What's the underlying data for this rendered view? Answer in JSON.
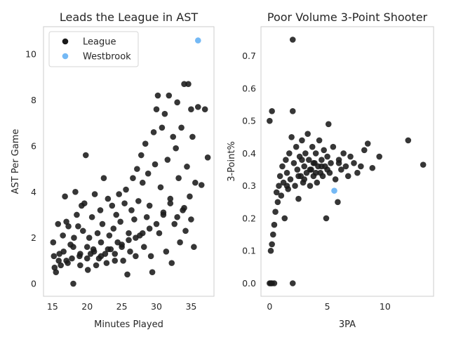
{
  "chart_data": [
    {
      "type": "scatter",
      "title": "Leads the League in AST",
      "xlabel": "Minutes Played",
      "ylabel": "AST Per Game",
      "xlim": [
        13.7,
        38.3
      ],
      "ylim": [
        -0.55,
        11.2
      ],
      "xticks": [
        15,
        20,
        25,
        30,
        35
      ],
      "yticks": [
        0,
        2,
        4,
        6,
        8,
        10
      ],
      "grid": false,
      "legend_position": "top-left",
      "series": [
        {
          "name": "League",
          "color": "#1a1a1a",
          "points": [
            [
              15.1,
              1.8
            ],
            [
              15.2,
              1.2
            ],
            [
              15.3,
              0.7
            ],
            [
              15.5,
              0.5
            ],
            [
              15.8,
              2.6
            ],
            [
              15.9,
              1.0
            ],
            [
              16.2,
              0.8
            ],
            [
              16.5,
              2.1
            ],
            [
              16.6,
              1.4
            ],
            [
              16.8,
              3.8
            ],
            [
              17.0,
              2.7
            ],
            [
              17.2,
              0.9
            ],
            [
              17.3,
              2.5
            ],
            [
              17.6,
              1.7
            ],
            [
              17.8,
              1.1
            ],
            [
              18.0,
              0.0
            ],
            [
              18.1,
              2.0
            ],
            [
              18.3,
              4.0
            ],
            [
              18.5,
              3.0
            ],
            [
              18.7,
              2.5
            ],
            [
              18.9,
              1.2
            ],
            [
              19.0,
              0.8
            ],
            [
              19.2,
              3.4
            ],
            [
              19.4,
              2.3
            ],
            [
              19.6,
              3.5
            ],
            [
              19.8,
              5.6
            ],
            [
              20.0,
              1.6
            ],
            [
              20.1,
              0.6
            ],
            [
              20.3,
              2.0
            ],
            [
              20.5,
              1.3
            ],
            [
              20.7,
              2.9
            ],
            [
              20.9,
              1.5
            ],
            [
              21.1,
              3.9
            ],
            [
              21.3,
              0.8
            ],
            [
              21.5,
              2.2
            ],
            [
              21.7,
              1.1
            ],
            [
              21.9,
              3.2
            ],
            [
              22.0,
              1.8
            ],
            [
              22.2,
              2.6
            ],
            [
              22.4,
              4.6
            ],
            [
              22.6,
              1.3
            ],
            [
              22.8,
              0.9
            ],
            [
              23.0,
              3.7
            ],
            [
              23.2,
              2.1
            ],
            [
              23.4,
              1.5
            ],
            [
              23.6,
              3.4
            ],
            [
              23.8,
              2.4
            ],
            [
              24.0,
              1.0
            ],
            [
              24.2,
              3.0
            ],
            [
              24.4,
              1.8
            ],
            [
              24.6,
              3.9
            ],
            [
              24.8,
              2.7
            ],
            [
              25.0,
              1.6
            ],
            [
              25.2,
              1.0
            ],
            [
              25.4,
              3.5
            ],
            [
              25.6,
              4.1
            ],
            [
              25.8,
              0.4
            ],
            [
              26.0,
              2.2
            ],
            [
              26.2,
              1.4
            ],
            [
              26.4,
              3.2
            ],
            [
              26.6,
              4.6
            ],
            [
              26.8,
              2.8
            ],
            [
              27.0,
              1.2
            ],
            [
              27.2,
              5.0
            ],
            [
              27.4,
              3.6
            ],
            [
              27.6,
              2.1
            ],
            [
              27.8,
              5.6
            ],
            [
              28.0,
              4.4
            ],
            [
              28.2,
              1.6
            ],
            [
              28.4,
              6.1
            ],
            [
              28.6,
              2.9
            ],
            [
              28.8,
              4.8
            ],
            [
              29.0,
              3.4
            ],
            [
              29.2,
              1.2
            ],
            [
              29.4,
              0.5
            ],
            [
              29.6,
              6.6
            ],
            [
              29.8,
              5.2
            ],
            [
              30.0,
              7.6
            ],
            [
              30.2,
              8.2
            ],
            [
              30.4,
              2.2
            ],
            [
              30.6,
              4.2
            ],
            [
              30.8,
              6.8
            ],
            [
              31.0,
              3.1
            ],
            [
              31.2,
              7.4
            ],
            [
              31.4,
              1.4
            ],
            [
              31.6,
              5.4
            ],
            [
              31.8,
              8.2
            ],
            [
              32.0,
              3.7
            ],
            [
              32.2,
              0.9
            ],
            [
              32.4,
              6.4
            ],
            [
              32.6,
              2.6
            ],
            [
              32.8,
              5.9
            ],
            [
              33.0,
              7.9
            ],
            [
              33.2,
              4.6
            ],
            [
              33.4,
              1.8
            ],
            [
              33.6,
              6.8
            ],
            [
              33.8,
              3.2
            ],
            [
              34.0,
              8.7
            ],
            [
              34.2,
              2.3
            ],
            [
              34.4,
              5.1
            ],
            [
              34.6,
              8.7
            ],
            [
              34.8,
              3.8
            ],
            [
              35.0,
              7.6
            ],
            [
              35.2,
              6.4
            ],
            [
              35.4,
              1.6
            ],
            [
              35.6,
              4.4
            ],
            [
              36.0,
              7.7
            ],
            [
              36.5,
              4.3
            ],
            [
              37.0,
              7.6
            ],
            [
              37.4,
              5.5
            ],
            [
              16.0,
              1.3
            ],
            [
              17.0,
              1.0
            ],
            [
              18.0,
              1.6
            ],
            [
              19.0,
              1.3
            ],
            [
              20.0,
              1.1
            ],
            [
              21.0,
              1.4
            ],
            [
              22.0,
              1.2
            ],
            [
              23.0,
              1.5
            ],
            [
              24.0,
              1.3
            ],
            [
              25.0,
              1.7
            ],
            [
              26.0,
              1.9
            ],
            [
              27.0,
              2.0
            ],
            [
              28.0,
              2.2
            ],
            [
              29.0,
              2.4
            ],
            [
              30.0,
              2.6
            ],
            [
              31.0,
              3.0
            ],
            [
              32.0,
              3.5
            ],
            [
              33.0,
              2.9
            ],
            [
              34.0,
              3.3
            ],
            [
              35.0,
              2.8
            ]
          ]
        },
        {
          "name": "Westbrook",
          "color": "#74b9f5",
          "points": [
            [
              36.0,
              10.6
            ]
          ]
        }
      ]
    },
    {
      "type": "scatter",
      "title": "Poor Volume 3-Point Shooter",
      "xlabel": "3PA",
      "ylabel": "3-Point%",
      "xlim": [
        -0.75,
        14.2
      ],
      "ylim": [
        -0.04,
        0.79
      ],
      "xticks": [
        0,
        5,
        10
      ],
      "yticks": [
        0.0,
        0.1,
        0.2,
        0.3,
        0.4,
        0.5,
        0.6,
        0.7
      ],
      "grid": false,
      "series": [
        {
          "name": "League",
          "color": "#1a1a1a",
          "points": [
            [
              0.0,
              0.0
            ],
            [
              0.1,
              0.0
            ],
            [
              0.2,
              0.0
            ],
            [
              0.4,
              0.0
            ],
            [
              0.0,
              0.5
            ],
            [
              0.2,
              0.53
            ],
            [
              0.1,
              0.1
            ],
            [
              0.2,
              0.12
            ],
            [
              0.3,
              0.15
            ],
            [
              0.4,
              0.18
            ],
            [
              0.5,
              0.22
            ],
            [
              0.6,
              0.28
            ],
            [
              0.7,
              0.25
            ],
            [
              0.8,
              0.3
            ],
            [
              0.9,
              0.33
            ],
            [
              1.0,
              0.27
            ],
            [
              1.1,
              0.36
            ],
            [
              1.2,
              0.31
            ],
            [
              1.3,
              0.2
            ],
            [
              1.4,
              0.38
            ],
            [
              1.5,
              0.34
            ],
            [
              1.6,
              0.29
            ],
            [
              1.7,
              0.4
            ],
            [
              1.8,
              0.32
            ],
            [
              1.9,
              0.45
            ],
            [
              2.0,
              0.75
            ],
            [
              2.0,
              0.53
            ],
            [
              2.0,
              0.0
            ],
            [
              2.1,
              0.37
            ],
            [
              2.2,
              0.3
            ],
            [
              2.3,
              0.42
            ],
            [
              2.4,
              0.35
            ],
            [
              2.5,
              0.26
            ],
            [
              2.6,
              0.39
            ],
            [
              2.7,
              0.33
            ],
            [
              2.8,
              0.44
            ],
            [
              2.9,
              0.31
            ],
            [
              3.0,
              0.36
            ],
            [
              3.1,
              0.4
            ],
            [
              3.2,
              0.34
            ],
            [
              3.3,
              0.46
            ],
            [
              3.4,
              0.38
            ],
            [
              3.5,
              0.3
            ],
            [
              3.6,
              0.35
            ],
            [
              3.7,
              0.42
            ],
            [
              3.8,
              0.33
            ],
            [
              3.9,
              0.37
            ],
            [
              4.0,
              0.4
            ],
            [
              4.1,
              0.31
            ],
            [
              4.2,
              0.36
            ],
            [
              4.3,
              0.44
            ],
            [
              4.4,
              0.34
            ],
            [
              4.5,
              0.38
            ],
            [
              4.6,
              0.33
            ],
            [
              4.7,
              0.41
            ],
            [
              4.8,
              0.36
            ],
            [
              4.9,
              0.2
            ],
            [
              5.0,
              0.39
            ],
            [
              5.1,
              0.49
            ],
            [
              5.2,
              0.34
            ],
            [
              5.3,
              0.37
            ],
            [
              5.5,
              0.42
            ],
            [
              5.7,
              0.32
            ],
            [
              5.9,
              0.25
            ],
            [
              6.0,
              0.38
            ],
            [
              6.2,
              0.35
            ],
            [
              6.4,
              0.4
            ],
            [
              6.6,
              0.36
            ],
            [
              6.8,
              0.33
            ],
            [
              7.0,
              0.39
            ],
            [
              7.3,
              0.37
            ],
            [
              7.6,
              0.34
            ],
            [
              7.9,
              0.36
            ],
            [
              8.2,
              0.41
            ],
            [
              8.5,
              0.43
            ],
            [
              8.9,
              0.355
            ],
            [
              9.5,
              0.39
            ],
            [
              12.0,
              0.44
            ],
            [
              13.3,
              0.365
            ],
            [
              2.5,
              0.33
            ],
            [
              3.0,
              0.32
            ],
            [
              3.5,
              0.35
            ],
            [
              4.0,
              0.34
            ],
            [
              4.5,
              0.36
            ],
            [
              5.0,
              0.35
            ],
            [
              6.0,
              0.37
            ],
            [
              1.5,
              0.3
            ],
            [
              2.8,
              0.38
            ],
            [
              3.8,
              0.37
            ]
          ]
        },
        {
          "name": "Westbrook",
          "color": "#74b9f5",
          "points": [
            [
              5.6,
              0.285
            ]
          ]
        }
      ]
    }
  ]
}
